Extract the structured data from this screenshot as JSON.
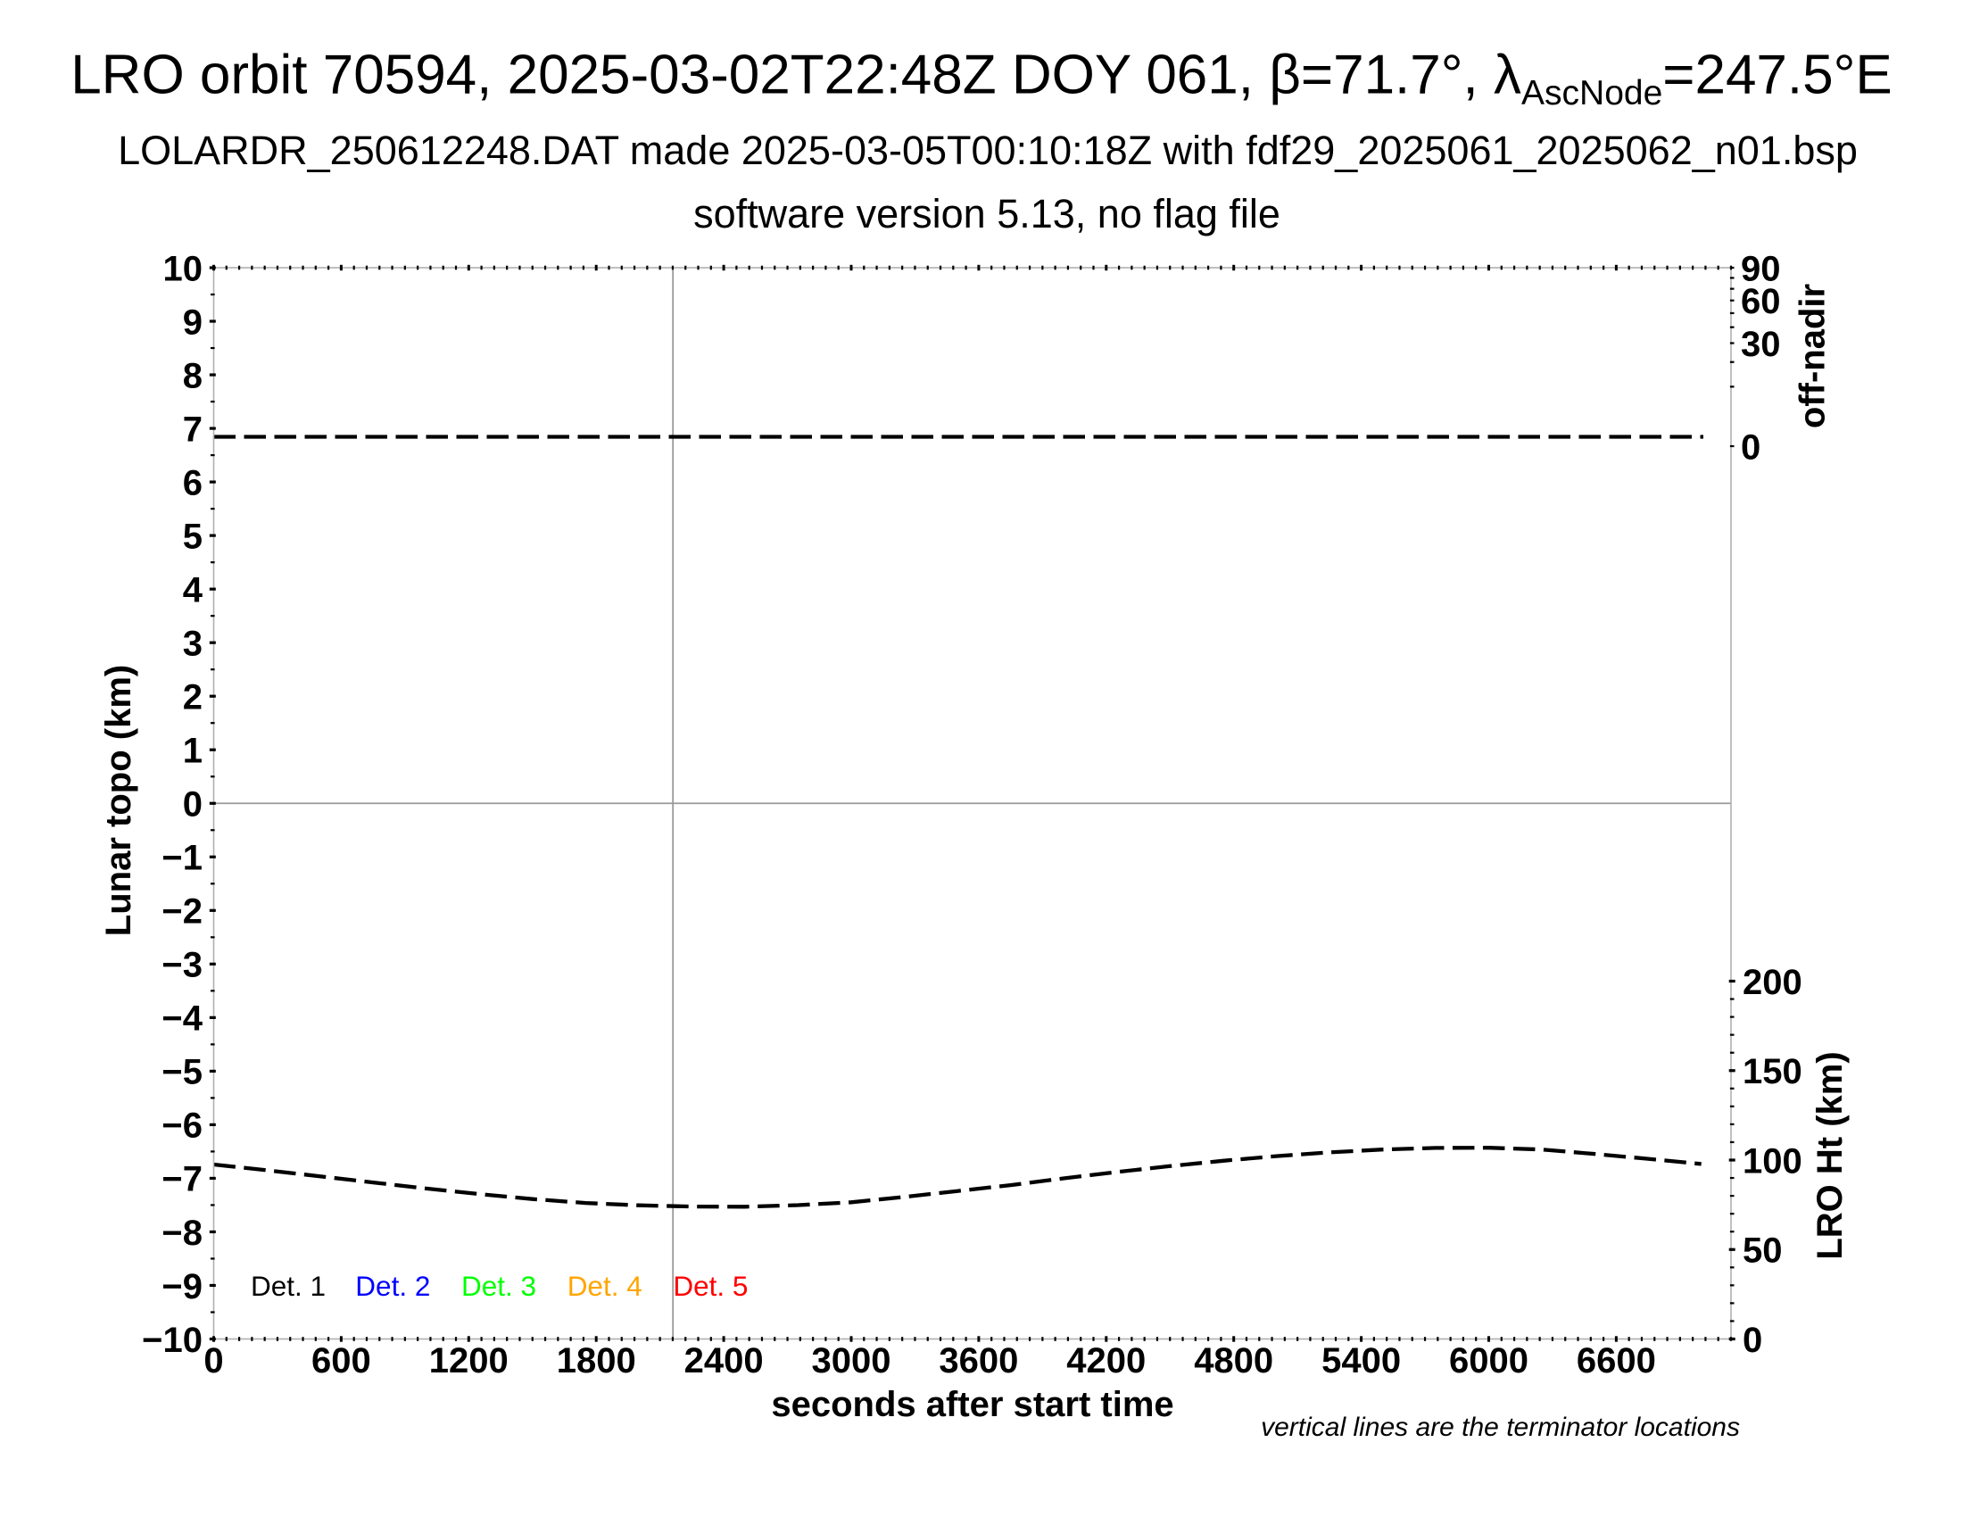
{
  "page": {
    "background": "#ffffff"
  },
  "header": {
    "title_pre": "LRO orbit 70594, 2025-03-02T22:48Z DOY 061, β=71.7°, λ",
    "title_sub": "AscNode",
    "title_post": "=247.5°E",
    "subtitle": "LOLARDR_250612248.DAT made 2025-03-05T00:10:18Z with fdf29_2025061_2025062_n01.bsp",
    "subtitle2": "software version 5.13, no flag file"
  },
  "footnote": "vertical lines are the terminator locations",
  "chart_data": {
    "type": "line",
    "title": "LRO orbit 70594, 2025-03-02T22:48Z DOY 061, β=71.7°, λ_AscNode=247.5°E",
    "xlabel": "seconds after start time",
    "ylabel_left": "Lunar topo (km)",
    "ylabel_right_top": "off-nadir",
    "ylabel_right_bottom": "LRO Ht (km)",
    "xlim": [
      0,
      7140
    ],
    "ylim_left": [
      -10,
      10
    ],
    "x_major_ticks": [
      0,
      600,
      1200,
      1800,
      2400,
      3000,
      3600,
      4200,
      4800,
      5400,
      6000,
      6600
    ],
    "x_minor_tick_step": 60,
    "y_major_tick_step": 1,
    "y_minor_tick_step": 0.5,
    "grid": {
      "horizontal_line_at": 0,
      "legend_position": "bottom-left"
    },
    "off_nadir_axis": {
      "min": 0,
      "max": 90,
      "tick_step": 10,
      "labeled_ticks": [
        90,
        60,
        30,
        0
      ],
      "scale": "sqrt"
    },
    "lro_ht_axis": {
      "min": 0,
      "max": 200,
      "labeled_ticks": [
        200,
        150,
        100,
        50,
        0
      ],
      "minor_tick_step": 10,
      "unit": "km"
    },
    "terminator_lines_s": [
      2161
    ],
    "series": [
      {
        "name": "spacecraft off-nadir angle",
        "axis": "off_nadir",
        "style": "dashed",
        "color": "#000000",
        "x_s": [
          0,
          7010
        ],
        "y_deg": [
          0.25,
          0.25
        ]
      },
      {
        "name": "LRO height above surface",
        "axis": "lro_ht",
        "style": "dashed",
        "color": "#000000",
        "x_s": [
          0,
          250,
          500,
          750,
          1000,
          1250,
          1500,
          1750,
          2000,
          2250,
          2500,
          2750,
          3000,
          3250,
          3500,
          3750,
          4000,
          4250,
          4500,
          4750,
          5000,
          5250,
          5500,
          5750,
          6000,
          6250,
          6500,
          6750,
          7000
        ],
        "y_km": [
          97.5,
          94.3,
          90.9,
          87.5,
          84.1,
          81.0,
          78.2,
          76.0,
          74.7,
          74.0,
          73.9,
          74.8,
          76.4,
          79.4,
          82.7,
          86.0,
          89.8,
          93.3,
          96.6,
          99.6,
          102.2,
          104.3,
          105.9,
          106.8,
          106.9,
          105.9,
          103.4,
          100.7,
          97.8
        ]
      }
    ],
    "legend": [
      {
        "label": "Det. 1",
        "color": "#000000"
      },
      {
        "label": "Det. 2",
        "color": "#0000ff"
      },
      {
        "label": "Det. 3",
        "color": "#00ff00"
      },
      {
        "label": "Det. 4",
        "color": "#ffa500"
      },
      {
        "label": "Det. 5",
        "color": "#ff0000"
      }
    ],
    "colors": {
      "axis_box": "#b0b0b0",
      "inner_lines": "#9a9a9a",
      "ticks": "#000000",
      "curves": "#000000"
    }
  }
}
